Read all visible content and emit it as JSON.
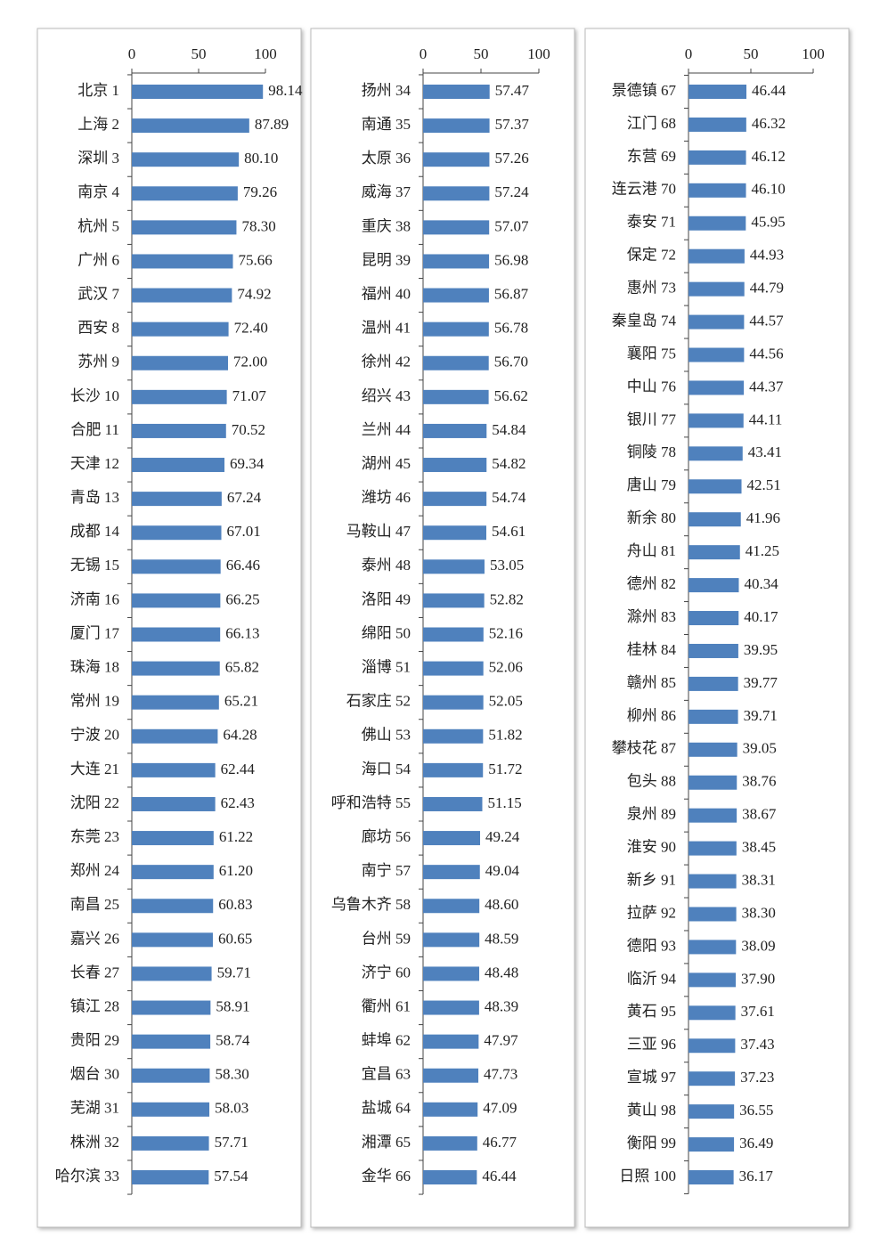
{
  "chart_data": [
    {
      "type": "bar",
      "orientation": "horizontal",
      "color": "#4f81bd",
      "xlim": [
        0,
        100
      ],
      "xticks": [
        0,
        50,
        100
      ],
      "categories": [
        "北京 1",
        "上海 2",
        "深圳 3",
        "南京 4",
        "杭州 5",
        "广州 6",
        "武汉 7",
        "西安 8",
        "苏州 9",
        "长沙 10",
        "合肥 11",
        "天津 12",
        "青岛 13",
        "成都 14",
        "无锡 15",
        "济南 16",
        "厦门 17",
        "珠海 18",
        "常州 19",
        "宁波 20",
        "大连 21",
        "沈阳 22",
        "东莞 23",
        "郑州 24",
        "南昌 25",
        "嘉兴 26",
        "长春 27",
        "镇江 28",
        "贵阳 29",
        "烟台 30",
        "芜湖 31",
        "株洲 32",
        "哈尔滨 33"
      ],
      "values": [
        98.14,
        87.89,
        80.1,
        79.26,
        78.3,
        75.66,
        74.92,
        72.4,
        72,
        71.07,
        70.52,
        69.34,
        67.24,
        67.01,
        66.46,
        66.25,
        66.13,
        65.82,
        65.21,
        64.28,
        62.44,
        62.43,
        61.22,
        61.2,
        60.83,
        60.65,
        59.71,
        58.91,
        58.74,
        58.3,
        58.03,
        57.71,
        57.54
      ],
      "value_labels": [
        "98.14",
        "87.89",
        "80.10",
        "79.26",
        "78.30",
        "75.66",
        "74.92",
        "72.40",
        "72.00",
        "71.07",
        "70.52",
        "69.34",
        "67.24",
        "67.01",
        "66.46",
        "66.25",
        "66.13",
        "65.82",
        "65.21",
        "64.28",
        "62.44",
        "62.43",
        "61.22",
        "61.20",
        "60.83",
        "60.65",
        "59.71",
        "58.91",
        "58.74",
        "58.30",
        "58.03",
        "57.71",
        "57.54"
      ]
    },
    {
      "type": "bar",
      "orientation": "horizontal",
      "color": "#4f81bd",
      "xlim": [
        0,
        100
      ],
      "xticks": [
        0,
        50,
        100
      ],
      "categories": [
        "扬州 34",
        "南通 35",
        "太原 36",
        "威海 37",
        "重庆 38",
        "昆明 39",
        "福州 40",
        "温州 41",
        "徐州 42",
        "绍兴 43",
        "兰州 44",
        "湖州 45",
        "潍坊 46",
        "马鞍山 47",
        "泰州 48",
        "洛阳 49",
        "绵阳 50",
        "淄博 51",
        "石家庄 52",
        "佛山 53",
        "海口 54",
        "呼和浩特 55",
        "廊坊 56",
        "南宁 57",
        "乌鲁木齐 58",
        "台州 59",
        "济宁 60",
        "衢州 61",
        "蚌埠 62",
        "宜昌 63",
        "盐城 64",
        "湘潭 65",
        "金华 66"
      ],
      "values": [
        57.47,
        57.37,
        57.26,
        57.24,
        57.07,
        56.98,
        56.87,
        56.78,
        56.7,
        56.62,
        54.84,
        54.82,
        54.74,
        54.61,
        53.05,
        52.82,
        52.16,
        52.06,
        52.05,
        51.82,
        51.72,
        51.15,
        49.24,
        49.04,
        48.6,
        48.59,
        48.48,
        48.39,
        47.97,
        47.73,
        47.09,
        46.77,
        46.44
      ],
      "value_labels": [
        "57.47",
        "57.37",
        "57.26",
        "57.24",
        "57.07",
        "56.98",
        "56.87",
        "56.78",
        "56.70",
        "56.62",
        "54.84",
        "54.82",
        "54.74",
        "54.61",
        "53.05",
        "52.82",
        "52.16",
        "52.06",
        "52.05",
        "51.82",
        "51.72",
        "51.15",
        "49.24",
        "49.04",
        "48.60",
        "48.59",
        "48.48",
        "48.39",
        "47.97",
        "47.73",
        "47.09",
        "46.77",
        "46.44"
      ]
    },
    {
      "type": "bar",
      "orientation": "horizontal",
      "color": "#4f81bd",
      "xlim": [
        0,
        100
      ],
      "xticks": [
        0,
        50,
        100
      ],
      "categories": [
        "景德镇 67",
        "江门 68",
        "东营 69",
        "连云港 70",
        "泰安 71",
        "保定 72",
        "惠州 73",
        "秦皇岛 74",
        "襄阳 75",
        "中山 76",
        "银川 77",
        "铜陵 78",
        "唐山 79",
        "新余 80",
        "舟山 81",
        "德州 82",
        "滁州 83",
        "桂林 84",
        "赣州 85",
        "柳州 86",
        "攀枝花 87",
        "包头 88",
        "泉州 89",
        "淮安 90",
        "新乡 91",
        "拉萨 92",
        "德阳 93",
        "临沂 94",
        "黄石 95",
        "三亚 96",
        "宣城 97",
        "黄山 98",
        "衡阳 99",
        "日照 100"
      ],
      "values": [
        46.44,
        46.32,
        46.12,
        46.1,
        45.95,
        44.93,
        44.79,
        44.57,
        44.56,
        44.37,
        44.11,
        43.41,
        42.51,
        41.96,
        41.25,
        40.34,
        40.17,
        39.95,
        39.77,
        39.71,
        39.05,
        38.76,
        38.67,
        38.45,
        38.31,
        38.3,
        38.09,
        37.9,
        37.61,
        37.43,
        37.23,
        36.55,
        36.49,
        36.17
      ],
      "value_labels": [
        "46.44",
        "46.32",
        "46.12",
        "46.10",
        "45.95",
        "44.93",
        "44.79",
        "44.57",
        "44.56",
        "44.37",
        "44.11",
        "43.41",
        "42.51",
        "41.96",
        "41.25",
        "40.34",
        "40.17",
        "39.95",
        "39.77",
        "39.71",
        "39.05",
        "38.76",
        "38.67",
        "38.45",
        "38.31",
        "38.30",
        "38.09",
        "37.90",
        "37.61",
        "37.43",
        "37.23",
        "36.55",
        "36.49",
        "36.17"
      ]
    }
  ]
}
